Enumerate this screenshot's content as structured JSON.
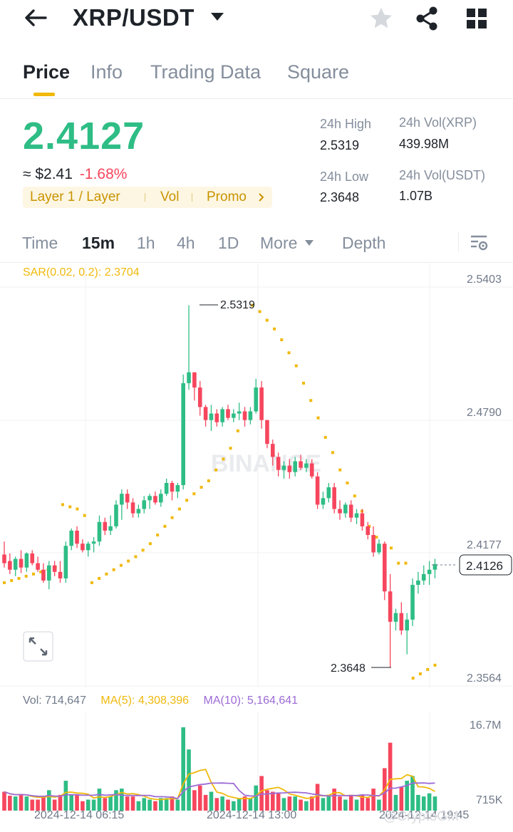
{
  "header": {
    "pair": "XRP/USDT",
    "icons": [
      "arrow-left-icon",
      "caret-down-icon",
      "star-icon",
      "share-icon",
      "grid-icon"
    ],
    "star_color": "#d5d8dc"
  },
  "tabs": [
    {
      "label": "Price",
      "active": true
    },
    {
      "label": "Info",
      "active": false
    },
    {
      "label": "Trading Data",
      "active": false
    },
    {
      "label": "Square",
      "active": false
    }
  ],
  "ticker": {
    "last_price": "2.4127",
    "fiat_price": "≈ $2.41",
    "change": "-1.68%",
    "tags": [
      "Layer 1 / Layer",
      "Vol",
      "Promo"
    ],
    "high_label": "24h High",
    "high_value": "2.5319",
    "low_label": "24h Low",
    "low_value": "2.3648",
    "vol_coin_label": "24h Vol(XRP)",
    "vol_coin_value": "439.98M",
    "vol_quote_label": "24h Vol(USDT)",
    "vol_quote_value": "1.07B"
  },
  "intervals": {
    "items": [
      {
        "label": "Time",
        "active": false
      },
      {
        "label": "15m",
        "active": true
      },
      {
        "label": "1h",
        "active": false
      },
      {
        "label": "4h",
        "active": false
      },
      {
        "label": "1D",
        "active": false
      },
      {
        "label": "More",
        "active": false
      }
    ],
    "depth": "Depth"
  },
  "chart": {
    "sar_label": "SAR(0.02, 0.2): 2.3704",
    "y_ticks": [
      "2.5403",
      "2.4790",
      "2.4177",
      "2.3564"
    ],
    "current_price_tag": "2.4126",
    "high_marker": "2.5319",
    "low_marker": "2.3648",
    "watermark": "BINANCE",
    "colors": {
      "up": "#2ebd85",
      "down": "#f6465d",
      "sar": "#f0b90b",
      "ma5": "#f0b90b",
      "ma10": "#9c6bd6"
    }
  },
  "volume": {
    "vol_label": "Vol: 714,647",
    "ma5_label": "MA(5): 4,308,396",
    "ma10_label": "MA(10): 5,164,641",
    "y_ticks": [
      "16.7M",
      "715K"
    ],
    "x_ticks": [
      "2024-12-14 06:15",
      "2024-12-14 13:00",
      "2024-12-14 19:45"
    ],
    "overlay_text": "@CryptoGM"
  },
  "chart_data": {
    "type": "candlestick",
    "interval": "15m",
    "ylim": [
      2.3564,
      2.5403
    ],
    "y_ticks": [
      2.5403,
      2.479,
      2.4177,
      2.3564
    ],
    "candles": [
      [
        2.417,
        2.423,
        2.411,
        2.413
      ],
      [
        2.414,
        2.4175,
        2.408,
        2.41
      ],
      [
        2.41,
        2.416,
        2.407,
        2.415
      ],
      [
        2.415,
        2.419,
        2.4085,
        2.411
      ],
      [
        2.411,
        2.418,
        2.409,
        2.4175
      ],
      [
        2.4175,
        2.419,
        2.412,
        2.413
      ],
      [
        2.413,
        2.416,
        2.409,
        2.41
      ],
      [
        2.41,
        2.413,
        2.404,
        2.405
      ],
      [
        2.405,
        2.414,
        2.401,
        2.412
      ],
      [
        2.412,
        2.414,
        2.407,
        2.409
      ],
      [
        2.409,
        2.414,
        2.404,
        2.406
      ],
      [
        2.406,
        2.423,
        2.404,
        2.421
      ],
      [
        2.421,
        2.429,
        2.419,
        2.428
      ],
      [
        2.428,
        2.43,
        2.42,
        2.422
      ],
      [
        2.422,
        2.424,
        2.418,
        2.419
      ],
      [
        2.419,
        2.423,
        2.416,
        2.422
      ],
      [
        2.422,
        2.425,
        2.418,
        2.423
      ],
      [
        2.423,
        2.435,
        2.421,
        2.432
      ],
      [
        2.432,
        2.434,
        2.426,
        2.428
      ],
      [
        2.428,
        2.435,
        2.426,
        2.43
      ],
      [
        2.43,
        2.442,
        2.429,
        2.44
      ],
      [
        2.44,
        2.447,
        2.433,
        2.445
      ],
      [
        2.445,
        2.447,
        2.438,
        2.441
      ],
      [
        2.441,
        2.443,
        2.434,
        2.436
      ],
      [
        2.436,
        2.44,
        2.434,
        2.438
      ],
      [
        2.438,
        2.444,
        2.436,
        2.442
      ],
      [
        2.442,
        2.445,
        2.438,
        2.444
      ],
      [
        2.444,
        2.446,
        2.44,
        2.441
      ],
      [
        2.441,
        2.447,
        2.439,
        2.445
      ],
      [
        2.445,
        2.452,
        2.444,
        2.45
      ],
      [
        2.45,
        2.451,
        2.442,
        2.446
      ],
      [
        2.446,
        2.45,
        2.443,
        2.449
      ],
      [
        2.449,
        2.5,
        2.447,
        2.496
      ],
      [
        2.496,
        2.5319,
        2.493,
        2.501
      ],
      [
        2.501,
        2.501,
        2.488,
        2.494
      ],
      [
        2.494,
        2.497,
        2.481,
        2.485
      ],
      [
        2.485,
        2.486,
        2.476,
        2.479
      ],
      [
        2.479,
        2.486,
        2.474,
        2.482
      ],
      [
        2.482,
        2.484,
        2.476,
        2.478
      ],
      [
        2.478,
        2.485,
        2.476,
        2.484
      ],
      [
        2.484,
        2.486,
        2.479,
        2.48
      ],
      [
        2.48,
        2.484,
        2.478,
        2.482
      ],
      [
        2.482,
        2.487,
        2.479,
        2.483
      ],
      [
        2.483,
        2.485,
        2.476,
        2.479
      ],
      [
        2.479,
        2.485,
        2.477,
        2.483
      ],
      [
        2.483,
        2.498,
        2.482,
        2.494
      ],
      [
        2.494,
        2.497,
        2.475,
        2.479
      ],
      [
        2.479,
        2.479,
        2.466,
        2.468
      ],
      [
        2.468,
        2.47,
        2.458,
        2.462
      ],
      [
        2.462,
        2.464,
        2.453,
        2.456
      ],
      [
        2.456,
        2.46,
        2.452,
        2.458
      ],
      [
        2.458,
        2.461,
        2.452,
        2.455
      ],
      [
        2.455,
        2.462,
        2.453,
        2.46
      ],
      [
        2.46,
        2.463,
        2.456,
        2.457
      ],
      [
        2.457,
        2.461,
        2.455,
        2.459
      ],
      [
        2.459,
        2.461,
        2.452,
        2.453
      ],
      [
        2.453,
        2.455,
        2.438,
        2.44
      ],
      [
        2.44,
        2.446,
        2.438,
        2.443
      ],
      [
        2.443,
        2.45,
        2.441,
        2.448
      ],
      [
        2.448,
        2.45,
        2.436,
        2.438
      ],
      [
        2.438,
        2.442,
        2.433,
        2.436
      ],
      [
        2.436,
        2.441,
        2.434,
        2.44
      ],
      [
        2.44,
        2.442,
        2.432,
        2.434
      ],
      [
        2.434,
        2.438,
        2.431,
        2.436
      ],
      [
        2.436,
        2.438,
        2.428,
        2.43
      ],
      [
        2.43,
        2.432,
        2.424,
        2.426
      ],
      [
        2.426,
        2.43,
        2.416,
        2.418
      ],
      [
        2.418,
        2.424,
        2.417,
        2.422
      ],
      [
        2.422,
        2.423,
        2.396,
        2.4
      ],
      [
        2.4,
        2.408,
        2.3648,
        2.386
      ],
      [
        2.386,
        2.392,
        2.382,
        2.39
      ],
      [
        2.39,
        2.395,
        2.38,
        2.382
      ],
      [
        2.382,
        2.39,
        2.371,
        2.387
      ],
      [
        2.387,
        2.406,
        2.384,
        2.403
      ],
      [
        2.403,
        2.409,
        2.399,
        2.405
      ],
      [
        2.405,
        2.412,
        2.403,
        2.408
      ],
      [
        2.408,
        2.414,
        2.403,
        2.41
      ],
      [
        2.41,
        2.415,
        2.406,
        2.4126
      ]
    ],
    "sar": [
      2.404,
      2.405,
      2.406,
      2.407,
      2.408,
      2.409,
      2.41,
      2.411,
      2.44,
      2.439,
      2.438,
      2.435,
      2.404,
      2.406,
      2.408,
      2.41,
      2.412,
      2.414,
      2.416,
      2.419,
      2.422,
      2.426,
      2.43,
      2.434,
      2.438,
      2.442,
      2.445,
      2.448,
      2.451,
      2.456,
      2.461,
      2.466,
      2.474,
      2.482,
      2.5319,
      2.529,
      2.525,
      2.521,
      2.516,
      2.51,
      2.504,
      2.496,
      2.488,
      2.48,
      2.471,
      2.464,
      2.456,
      2.45,
      2.444,
      2.437,
      2.43,
      2.425,
      2.421,
      2.42,
      2.413,
      2.413,
      2.36,
      2.362,
      2.364,
      2.366
    ],
    "volume_max": 16700000,
    "volume_min_tick": 715000
  }
}
